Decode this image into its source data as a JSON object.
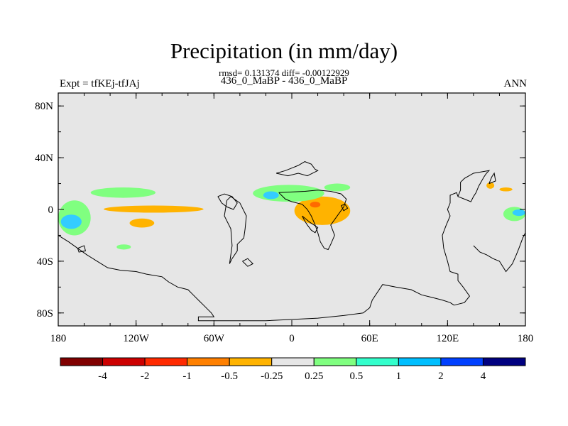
{
  "header": {
    "title": "Precipitation (in mm/day)",
    "stats": "rmsd= 0.131374 diff= -0.00122929",
    "subtitle": "436_0_MaBP - 436_0_MaBP",
    "left_label": "Expt = tfKEj-tfJAj",
    "right_label": "ANN"
  },
  "map": {
    "projection": "cylindrical-equidistant",
    "lon_range": [
      -180,
      180
    ],
    "lat_range": [
      -90,
      90
    ],
    "background_color": "#e6e6e6",
    "lon_ticks": [
      {
        "value": -180,
        "label": "180"
      },
      {
        "value": -120,
        "label": "120W"
      },
      {
        "value": -60,
        "label": "60W"
      },
      {
        "value": 0,
        "label": "0"
      },
      {
        "value": 60,
        "label": "60E"
      },
      {
        "value": 120,
        "label": "120E"
      },
      {
        "value": 180,
        "label": "180"
      }
    ],
    "lat_ticks": [
      {
        "value": 80,
        "label": "80N"
      },
      {
        "value": 40,
        "label": "40N"
      },
      {
        "value": 0,
        "label": "0"
      },
      {
        "value": -40,
        "label": "40S"
      },
      {
        "value": -80,
        "label": "80S"
      }
    ],
    "anomaly_regions": [
      {
        "name": "central-pacific-negative",
        "level": "-0.5",
        "lon": [
          -145,
          -68
        ],
        "lat": [
          -2.5,
          3
        ]
      },
      {
        "name": "south-pacific-negative",
        "level": "-0.5",
        "lon": [
          -125,
          -106
        ],
        "lat": [
          -14,
          -7
        ]
      },
      {
        "name": "africa-negative",
        "level": "-0.5",
        "lon": [
          2,
          45
        ],
        "lat": [
          -12,
          10
        ]
      },
      {
        "name": "africa-strong-negative",
        "level": "-1",
        "lon": [
          14,
          22
        ],
        "lat": [
          1.5,
          6
        ]
      },
      {
        "name": "warm-pool-negative-1",
        "level": "-0.5",
        "lon": [
          150,
          156
        ],
        "lat": [
          16,
          21
        ]
      },
      {
        "name": "warm-pool-negative-2",
        "level": "-0.5",
        "lon": [
          160,
          170
        ],
        "lat": [
          14,
          17
        ]
      },
      {
        "name": "west-pacific-positive",
        "level": "0.5",
        "lon": [
          -180,
          -155
        ],
        "lat": [
          -20,
          7
        ]
      },
      {
        "name": "west-pacific-strong-positive",
        "level": "1",
        "lon": [
          -178,
          -162
        ],
        "lat": [
          -15,
          -4
        ]
      },
      {
        "name": "north-pacific-positive",
        "level": "0.5",
        "lon": [
          -155,
          -105
        ],
        "lat": [
          9,
          17
        ]
      },
      {
        "name": "atlantic-positive",
        "level": "0.5",
        "lon": [
          -30,
          25
        ],
        "lat": [
          6,
          19
        ]
      },
      {
        "name": "atlantic-strong-positive",
        "level": "1",
        "lon": [
          -22,
          -10
        ],
        "lat": [
          8,
          14
        ]
      },
      {
        "name": "arabian-positive",
        "level": "0.5",
        "lon": [
          25,
          45
        ],
        "lat": [
          14,
          20
        ]
      },
      {
        "name": "south-pacific-positive-small",
        "level": "0.5",
        "lon": [
          -135,
          -124
        ],
        "lat": [
          -31,
          -27
        ]
      },
      {
        "name": "east-maritime-positive",
        "level": "0.5",
        "lon": [
          163,
          180
        ],
        "lat": [
          -9,
          2
        ]
      },
      {
        "name": "east-maritime-strong-positive",
        "level": "1",
        "lon": [
          170,
          180
        ],
        "lat": [
          -5,
          0
        ]
      }
    ],
    "continent_outlines": [
      {
        "name": "americas-outline",
        "points": [
          [
            -180,
            -20
          ],
          [
            -172,
            -25
          ],
          [
            -165,
            -30
          ],
          [
            -158,
            -35
          ],
          [
            -150,
            -40
          ],
          [
            -142,
            -45
          ],
          [
            -132,
            -47
          ],
          [
            -120,
            -48
          ],
          [
            -112,
            -50
          ],
          [
            -100,
            -52
          ],
          [
            -95,
            -56
          ],
          [
            -88,
            -60
          ],
          [
            -80,
            -62
          ],
          [
            -76,
            -66
          ],
          [
            -72,
            -70
          ],
          [
            -68,
            -74
          ],
          [
            -65,
            -77
          ],
          [
            -62,
            -80
          ],
          [
            -60,
            -83
          ],
          [
            -72,
            -83
          ],
          [
            -72,
            -86
          ],
          [
            -20,
            -86
          ],
          [
            20,
            -84
          ],
          [
            40,
            -82
          ],
          [
            55,
            -80
          ],
          [
            60,
            -76
          ],
          [
            62,
            -70
          ],
          [
            70,
            -58
          ],
          [
            80,
            -60
          ],
          [
            92,
            -62
          ],
          [
            100,
            -66
          ],
          [
            108,
            -68
          ],
          [
            116,
            -70
          ],
          [
            122,
            -72
          ],
          [
            125,
            -74
          ]
        ]
      },
      {
        "name": "south-america-outline",
        "points": [
          [
            -50,
            7
          ],
          [
            -47,
            10
          ],
          [
            -40,
            5
          ],
          [
            -35,
            -5
          ],
          [
            -36,
            -15
          ],
          [
            -37,
            -22
          ],
          [
            -42,
            -27
          ],
          [
            -42,
            -32
          ],
          [
            -46,
            -38
          ],
          [
            -48,
            -42
          ],
          [
            -46,
            -28
          ],
          [
            -47,
            -15
          ],
          [
            -52,
            -5
          ],
          [
            -50,
            7
          ]
        ]
      },
      {
        "name": "central-america-outline",
        "points": [
          [
            -57,
            10
          ],
          [
            -54,
            5
          ],
          [
            -50,
            2
          ],
          [
            -45,
            0
          ],
          [
            -42,
            5
          ],
          [
            -46,
            10
          ],
          [
            -52,
            12
          ],
          [
            -57,
            10
          ]
        ]
      },
      {
        "name": "europe-outline",
        "points": [
          [
            -12,
            28
          ],
          [
            -5,
            30
          ],
          [
            0,
            32
          ],
          [
            5,
            34
          ],
          [
            10,
            37
          ],
          [
            15,
            35
          ],
          [
            18,
            31
          ],
          [
            20,
            30
          ],
          [
            12,
            26
          ],
          [
            5,
            28
          ],
          [
            -3,
            26
          ],
          [
            -12,
            28
          ]
        ]
      },
      {
        "name": "africa-outline",
        "points": [
          [
            -10,
            13
          ],
          [
            -5,
            8
          ],
          [
            0,
            6
          ],
          [
            8,
            4
          ],
          [
            12,
            0
          ],
          [
            15,
            -5
          ],
          [
            18,
            -12
          ],
          [
            20,
            -18
          ],
          [
            22,
            -25
          ],
          [
            25,
            -30
          ],
          [
            28,
            -31
          ],
          [
            30,
            -27
          ],
          [
            33,
            -20
          ],
          [
            30,
            -12
          ],
          [
            35,
            -5
          ],
          [
            40,
            2
          ],
          [
            42,
            8
          ],
          [
            38,
            12
          ],
          [
            30,
            14
          ],
          [
            20,
            15
          ],
          [
            10,
            14
          ],
          [
            -10,
            13
          ]
        ]
      },
      {
        "name": "madagascar-outline",
        "points": [
          [
            8,
            -5
          ],
          [
            10,
            -9
          ],
          [
            12,
            -12
          ],
          [
            15,
            -16
          ],
          [
            18,
            -18
          ],
          [
            20,
            -14
          ],
          [
            14,
            -10
          ],
          [
            8,
            -5
          ]
        ]
      },
      {
        "name": "arabia-outline",
        "points": [
          [
            38,
            3
          ],
          [
            41,
            4
          ],
          [
            43,
            1
          ],
          [
            40,
            -1
          ],
          [
            38,
            3
          ]
        ]
      },
      {
        "name": "asia-outline",
        "points": [
          [
            125,
            -74
          ],
          [
            133,
            -72
          ],
          [
            137,
            -67
          ],
          [
            132,
            -60
          ],
          [
            128,
            -55
          ],
          [
            128,
            -50
          ],
          [
            122,
            -48
          ],
          [
            120,
            -40
          ],
          [
            117,
            -30
          ],
          [
            116,
            -20
          ],
          [
            119,
            -12
          ],
          [
            122,
            -5
          ],
          [
            120,
            0
          ],
          [
            122,
            5
          ],
          [
            122,
            11
          ],
          [
            127,
            13
          ],
          [
            128,
            10
          ],
          [
            133,
            8
          ],
          [
            138,
            6
          ],
          [
            140,
            10
          ],
          [
            142,
            13
          ],
          [
            144,
            18
          ],
          [
            148,
            25
          ],
          [
            150,
            28
          ],
          [
            152,
            30
          ],
          [
            140,
            28
          ],
          [
            133,
            24
          ],
          [
            130,
            21
          ],
          [
            130,
            15
          ],
          [
            128,
            10
          ]
        ]
      },
      {
        "name": "maritime-outline",
        "points": [
          [
            140,
            -28
          ],
          [
            145,
            -33
          ],
          [
            150,
            -35
          ],
          [
            155,
            -38
          ],
          [
            160,
            -40
          ],
          [
            165,
            -48
          ],
          [
            170,
            -42
          ],
          [
            173,
            -35
          ],
          [
            175,
            -30
          ],
          [
            178,
            -22
          ],
          [
            180,
            -18
          ]
        ]
      },
      {
        "name": "east-asia-island-outline",
        "points": [
          [
            152,
            20
          ],
          [
            154,
            25
          ],
          [
            156,
            28
          ],
          [
            157,
            22
          ],
          [
            152,
            20
          ]
        ]
      },
      {
        "name": "pacific-island-outline",
        "points": [
          [
            -165,
            -30
          ],
          [
            -160,
            -28
          ],
          [
            -159,
            -32
          ],
          [
            -164,
            -33
          ],
          [
            -165,
            -30
          ]
        ]
      },
      {
        "name": "caribbean-island-outline",
        "points": [
          [
            -38,
            -40
          ],
          [
            -34,
            -38
          ],
          [
            -30,
            -42
          ],
          [
            -34,
            -44
          ],
          [
            -38,
            -40
          ]
        ]
      }
    ]
  },
  "colorbar": {
    "colors": [
      "#800000",
      "#cc0000",
      "#ff2a00",
      "#ff8000",
      "#ffb300",
      "#e6e6e6",
      "#80ff80",
      "#33ffcc",
      "#00bfff",
      "#0040ff",
      "#000080"
    ],
    "labels": [
      "-4",
      "-2",
      "-1",
      "-0.5",
      "-0.25",
      "0.25",
      "0.5",
      "1",
      "2",
      "4"
    ]
  },
  "level_colors": {
    "-1": "#ff6a00",
    "-0.5": "#ffb300",
    "0.5": "#80ff80",
    "1": "#33ccff"
  }
}
